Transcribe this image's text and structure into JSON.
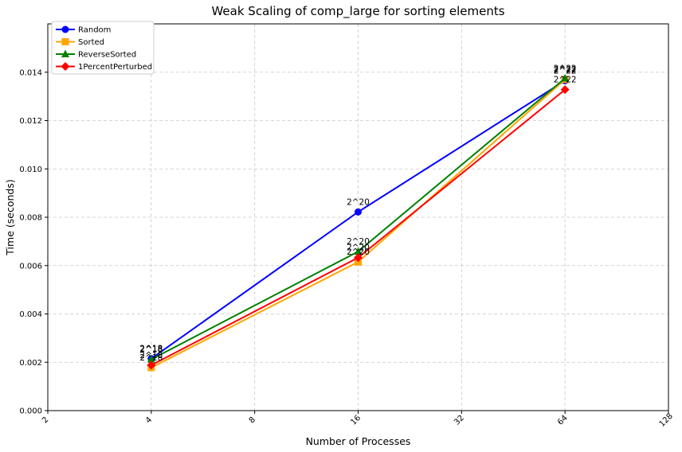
{
  "chart_data": {
    "type": "line",
    "title": "Weak Scaling of comp_large for sorting elements",
    "xlabel": "Number of Processes",
    "ylabel": "Time (seconds)",
    "x_scale": "log2",
    "xlim": [
      2,
      128
    ],
    "ylim": [
      0,
      0.016
    ],
    "x_ticks": [
      2,
      4,
      8,
      16,
      32,
      64,
      128
    ],
    "x_tick_labels": [
      "2",
      "4",
      "8",
      "16",
      "32",
      "64",
      "128"
    ],
    "y_ticks": [
      0,
      0.002,
      0.004,
      0.006,
      0.008,
      0.01,
      0.012,
      0.014
    ],
    "y_tick_labels": [
      "0.000",
      "0.002",
      "0.004",
      "0.006",
      "0.008",
      "0.010",
      "0.012",
      "0.014"
    ],
    "grid": true,
    "legend_position": "top-left",
    "x": [
      4,
      16,
      64
    ],
    "series": [
      {
        "name": "Random",
        "values": [
          0.00215,
          0.00822,
          0.01365
        ],
        "color": "#0000ff",
        "marker": "circle",
        "annotations": [
          "2^18",
          "2^20",
          "2^22"
        ]
      },
      {
        "name": "Sorted",
        "values": [
          0.00178,
          0.00615,
          0.0137
        ],
        "color": "#ffa500",
        "marker": "square",
        "annotations": [
          "2^18",
          "2^20",
          "2^22"
        ]
      },
      {
        "name": "ReverseSorted",
        "values": [
          0.00212,
          0.00658,
          0.01375
        ],
        "color": "#008000",
        "marker": "triangle",
        "annotations": [
          "2^18",
          "2^20",
          "2^22"
        ]
      },
      {
        "name": "1PercentPerturbed",
        "values": [
          0.00188,
          0.00633,
          0.01328
        ],
        "color": "#ff0000",
        "marker": "diamond",
        "annotations": [
          "2^18",
          "2^20",
          "2^22"
        ]
      }
    ]
  }
}
